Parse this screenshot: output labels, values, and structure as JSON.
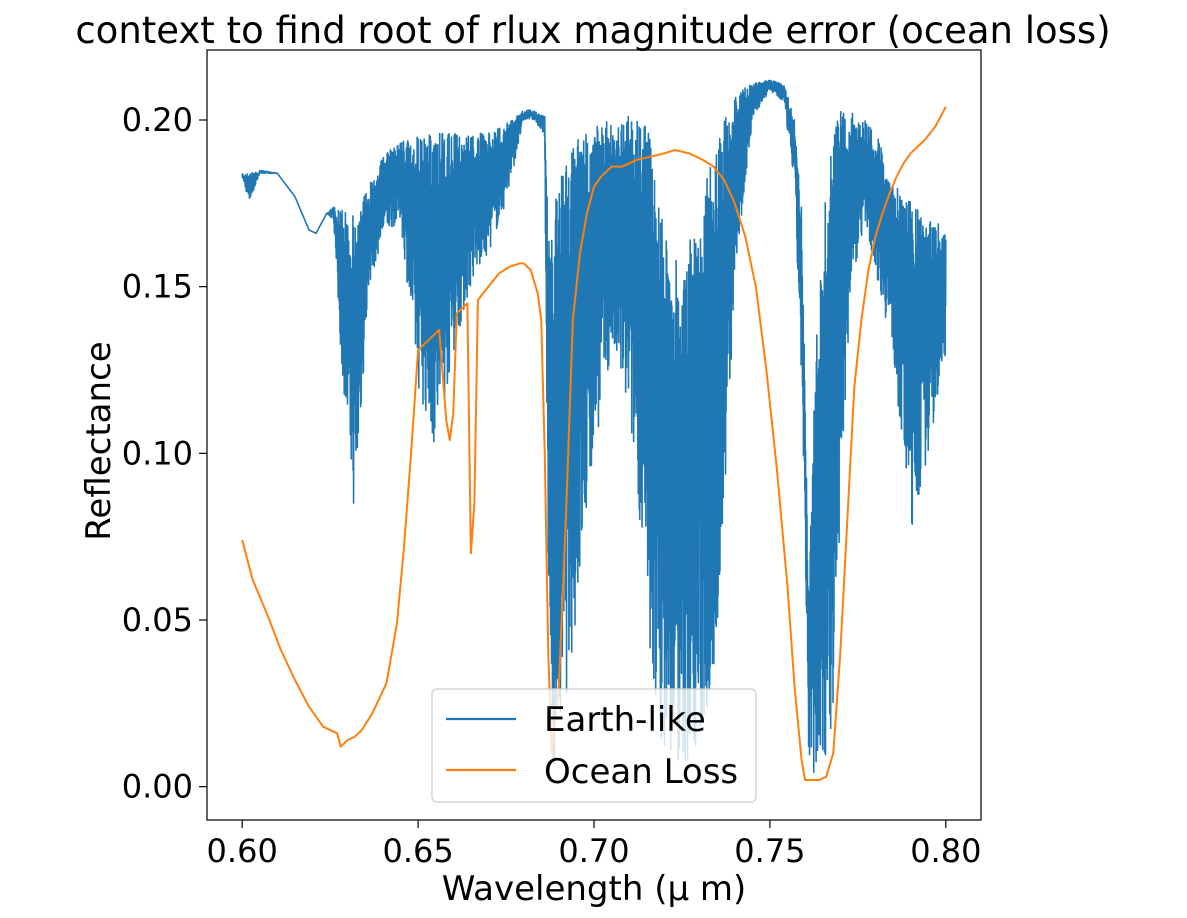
{
  "chart_data": {
    "type": "line",
    "title": "context to find root of rlux magnitude error (ocean loss)",
    "xlabel": "Wavelength (μ m)",
    "ylabel": "Reflectance",
    "xlim": [
      0.59,
      0.81
    ],
    "ylim": [
      -0.01,
      0.221
    ],
    "xticks": [
      0.6,
      0.65,
      0.7,
      0.75,
      0.8
    ],
    "xtick_labels": [
      "0.60",
      "0.65",
      "0.70",
      "0.75",
      "0.80"
    ],
    "yticks": [
      0.0,
      0.05,
      0.1,
      0.15,
      0.2
    ],
    "ytick_labels": [
      "0.00",
      "0.05",
      "0.10",
      "0.15",
      "0.20"
    ],
    "grid": false,
    "legend_position": "bottom-center",
    "series": [
      {
        "name": "Earth-like",
        "color": "#1f77b4",
        "style": "dense-high-resolution",
        "x": [
          0.6,
          0.602,
          0.605,
          0.61,
          0.615,
          0.619,
          0.621,
          0.624,
          0.626,
          0.628,
          0.632,
          0.636,
          0.64,
          0.645,
          0.65,
          0.655,
          0.66,
          0.665,
          0.67,
          0.675,
          0.68,
          0.683,
          0.686,
          0.687,
          0.688,
          0.69,
          0.695,
          0.7,
          0.705,
          0.71,
          0.713,
          0.716,
          0.72,
          0.725,
          0.73,
          0.734,
          0.737,
          0.74,
          0.745,
          0.75,
          0.754,
          0.757,
          0.759,
          0.761,
          0.763,
          0.766,
          0.768,
          0.77,
          0.773,
          0.777,
          0.781,
          0.785,
          0.79,
          0.795,
          0.8
        ],
        "upper": [
          0.184,
          0.184,
          0.185,
          0.184,
          0.177,
          0.167,
          0.166,
          0.172,
          0.174,
          0.173,
          0.172,
          0.181,
          0.189,
          0.194,
          0.195,
          0.196,
          0.196,
          0.196,
          0.196,
          0.199,
          0.203,
          0.203,
          0.201,
          0.165,
          0.165,
          0.185,
          0.195,
          0.198,
          0.2,
          0.203,
          0.201,
          0.196,
          0.165,
          0.155,
          0.175,
          0.19,
          0.2,
          0.208,
          0.211,
          0.212,
          0.211,
          0.2,
          0.175,
          0.06,
          0.13,
          0.18,
          0.198,
          0.203,
          0.203,
          0.2,
          0.195,
          0.181,
          0.176,
          0.17,
          0.168
        ],
        "lower": [
          0.183,
          0.175,
          0.184,
          0.184,
          0.177,
          0.167,
          0.166,
          0.172,
          0.17,
          0.13,
          0.08,
          0.15,
          0.165,
          0.17,
          0.12,
          0.1,
          0.13,
          0.15,
          0.16,
          0.175,
          0.2,
          0.2,
          0.195,
          0.05,
          0.005,
          0.01,
          0.05,
          0.1,
          0.13,
          0.11,
          0.08,
          0.03,
          0.01,
          0.005,
          0.01,
          0.03,
          0.08,
          0.15,
          0.2,
          0.209,
          0.205,
          0.18,
          0.12,
          0.01,
          0.002,
          0.005,
          0.02,
          0.08,
          0.15,
          0.17,
          0.15,
          0.13,
          0.075,
          0.1,
          0.13
        ]
      },
      {
        "name": "Ocean Loss",
        "color": "#ff7f0e",
        "x": [
          0.6,
          0.603,
          0.607,
          0.611,
          0.615,
          0.619,
          0.623,
          0.627,
          0.628,
          0.63,
          0.632,
          0.634,
          0.637,
          0.641,
          0.644,
          0.646,
          0.648,
          0.65,
          0.652,
          0.654,
          0.655,
          0.656,
          0.658,
          0.659,
          0.66,
          0.661,
          0.662,
          0.663,
          0.664,
          0.665,
          0.666,
          0.667,
          0.67,
          0.673,
          0.676,
          0.679,
          0.68,
          0.682,
          0.684,
          0.685,
          0.686,
          0.687,
          0.688,
          0.69,
          0.692,
          0.694,
          0.696,
          0.698,
          0.7,
          0.702,
          0.705,
          0.708,
          0.71,
          0.712,
          0.716,
          0.72,
          0.723,
          0.727,
          0.731,
          0.734,
          0.737,
          0.74,
          0.743,
          0.746,
          0.749,
          0.752,
          0.755,
          0.757,
          0.759,
          0.76,
          0.762,
          0.764,
          0.766,
          0.768,
          0.77,
          0.772,
          0.774,
          0.776,
          0.778,
          0.78,
          0.782,
          0.784,
          0.786,
          0.788,
          0.79,
          0.794,
          0.797,
          0.8
        ],
        "y": [
          0.074,
          0.062,
          0.052,
          0.041,
          0.032,
          0.024,
          0.018,
          0.016,
          0.012,
          0.014,
          0.015,
          0.017,
          0.022,
          0.031,
          0.049,
          0.072,
          0.1,
          0.131,
          0.133,
          0.135,
          0.136,
          0.137,
          0.11,
          0.104,
          0.112,
          0.142,
          0.143,
          0.144,
          0.145,
          0.07,
          0.085,
          0.146,
          0.15,
          0.154,
          0.156,
          0.157,
          0.157,
          0.155,
          0.148,
          0.14,
          0.1,
          0.04,
          0.01,
          0.03,
          0.08,
          0.14,
          0.16,
          0.172,
          0.18,
          0.183,
          0.186,
          0.186,
          0.187,
          0.188,
          0.189,
          0.19,
          0.191,
          0.19,
          0.188,
          0.186,
          0.182,
          0.175,
          0.165,
          0.15,
          0.125,
          0.095,
          0.06,
          0.03,
          0.008,
          0.002,
          0.002,
          0.002,
          0.003,
          0.01,
          0.04,
          0.08,
          0.12,
          0.14,
          0.155,
          0.165,
          0.172,
          0.178,
          0.183,
          0.187,
          0.19,
          0.194,
          0.198,
          0.204
        ]
      }
    ]
  }
}
